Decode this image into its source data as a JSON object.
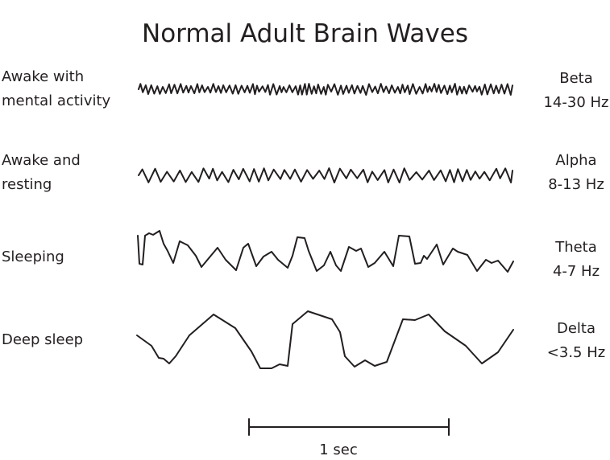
{
  "title": "Normal Adult Brain Waves",
  "rows": [
    {
      "state_lines": [
        "Awake with",
        "mental activity"
      ],
      "wave": "Beta",
      "range": "14-30 Hz"
    },
    {
      "state_lines": [
        "Awake and",
        "resting"
      ],
      "wave": "Alpha",
      "range": "8-13 Hz"
    },
    {
      "state_lines": [
        "Sleeping"
      ],
      "wave": "Theta",
      "range": "4-7 Hz"
    },
    {
      "state_lines": [
        "Deep sleep"
      ],
      "wave": "Delta",
      "range": "<3.5 Hz"
    }
  ],
  "scale_bar": {
    "label": "1 sec"
  },
  "colors": {
    "ink": "#231f20",
    "background": "#ffffff"
  }
}
